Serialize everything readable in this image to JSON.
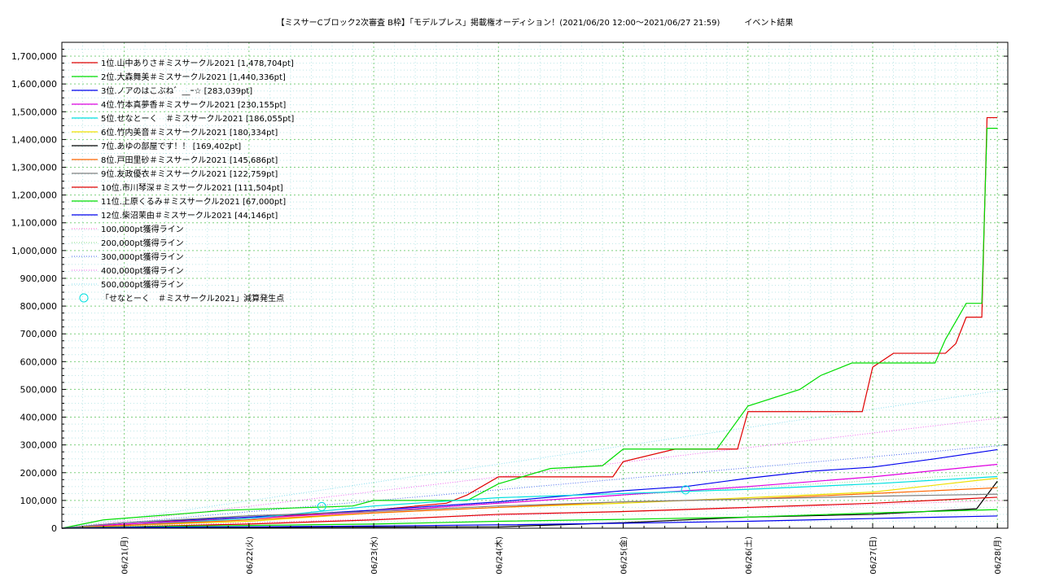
{
  "chart_data": {
    "type": "line",
    "title": "【ミスサーCブロック2次審査 B枠】「モデルプレス」掲載権オーディション！(2021/06/20 12:00〜2021/06/27 21:59)　　　イベント結果",
    "xlabel": "",
    "ylabel": "",
    "xlim": [
      "2021-06-20 12:00",
      "2021-06-28 02:00"
    ],
    "ylim": [
      0,
      1750000
    ],
    "y_ticks": [
      "0",
      "100,000",
      "200,000",
      "300,000",
      "400,000",
      "500,000",
      "600,000",
      "700,000",
      "800,000",
      "900,000",
      "1,000,000",
      "1,100,000",
      "1,200,000",
      "1,300,000",
      "1,400,000",
      "1,500,000",
      "1,600,000",
      "1,700,000"
    ],
    "x_ticks": [
      {
        "date": "2021-06-21 00:00",
        "label": "06/21(月)"
      },
      {
        "date": "2021-06-22 00:00",
        "label": "06/22(火)"
      },
      {
        "date": "2021-06-23 00:00",
        "label": "06/23(水)"
      },
      {
        "date": "2021-06-24 00:00",
        "label": "06/24(木)"
      },
      {
        "date": "2021-06-25 00:00",
        "label": "06/25(金)"
      },
      {
        "date": "2021-06-26 00:00",
        "label": "06/26(土)"
      },
      {
        "date": "2021-06-27 00:00",
        "label": "06/27(日)"
      },
      {
        "date": "2021-06-28 00:00",
        "label": "06/28(月)"
      }
    ],
    "grid": true,
    "legend_position": "top-left",
    "series": [
      {
        "name": "1位.山中ありさ＃ミスサークル2021 [1,478,704pt]",
        "color": "#e00000",
        "points": [
          [
            "2021-06-20 12:00",
            0
          ],
          [
            "2021-06-20 20:00",
            10000
          ],
          [
            "2021-06-21 10:00",
            25000
          ],
          [
            "2021-06-22 00:00",
            35000
          ],
          [
            "2021-06-22 12:00",
            50000
          ],
          [
            "2021-06-23 00:00",
            65000
          ],
          [
            "2021-06-23 14:00",
            90000
          ],
          [
            "2021-06-23 18:00",
            120000
          ],
          [
            "2021-06-24 00:00",
            185000
          ],
          [
            "2021-06-24 22:00",
            185000
          ],
          [
            "2021-06-25 00:00",
            240000
          ],
          [
            "2021-06-25 10:00",
            285000
          ],
          [
            "2021-06-25 22:00",
            285000
          ],
          [
            "2021-06-26 00:00",
            420000
          ],
          [
            "2021-06-26 22:00",
            420000
          ],
          [
            "2021-06-27 00:00",
            580000
          ],
          [
            "2021-06-27 04:00",
            630000
          ],
          [
            "2021-06-27 14:00",
            630000
          ],
          [
            "2021-06-27 16:00",
            665000
          ],
          [
            "2021-06-27 18:00",
            760000
          ],
          [
            "2021-06-27 21:00",
            760000
          ],
          [
            "2021-06-27 22:00",
            1478704
          ],
          [
            "2021-06-28 00:00",
            1478704
          ]
        ]
      },
      {
        "name": "2位.大森舞美＃ミスサークル2021 [1,440,336pt]",
        "color": "#00dd00",
        "points": [
          [
            "2021-06-20 12:00",
            0
          ],
          [
            "2021-06-20 20:00",
            30000
          ],
          [
            "2021-06-21 20:00",
            65000
          ],
          [
            "2021-06-22 20:00",
            80000
          ],
          [
            "2021-06-23 00:00",
            100000
          ],
          [
            "2021-06-23 18:00",
            100000
          ],
          [
            "2021-06-24 00:00",
            160000
          ],
          [
            "2021-06-24 10:00",
            215000
          ],
          [
            "2021-06-24 20:00",
            225000
          ],
          [
            "2021-06-25 00:00",
            285000
          ],
          [
            "2021-06-25 18:00",
            285000
          ],
          [
            "2021-06-26 00:00",
            440000
          ],
          [
            "2021-06-26 10:00",
            500000
          ],
          [
            "2021-06-26 14:00",
            550000
          ],
          [
            "2021-06-26 20:00",
            595000
          ],
          [
            "2021-06-27 12:00",
            595000
          ],
          [
            "2021-06-27 14:00",
            680000
          ],
          [
            "2021-06-27 18:00",
            810000
          ],
          [
            "2021-06-27 21:00",
            810000
          ],
          [
            "2021-06-27 22:00",
            1440336
          ],
          [
            "2021-06-28 00:00",
            1440336
          ]
        ]
      },
      {
        "name": "3位.ノアのはこぶね゛__ｰ☆ [283,039pt]",
        "color": "#0000ee",
        "points": [
          [
            "2021-06-20 12:00",
            0
          ],
          [
            "2021-06-21 00:00",
            20000
          ],
          [
            "2021-06-22 00:00",
            40000
          ],
          [
            "2021-06-23 00:00",
            65000
          ],
          [
            "2021-06-24 00:00",
            95000
          ],
          [
            "2021-06-24 18:00",
            125000
          ],
          [
            "2021-06-25 00:00",
            135000
          ],
          [
            "2021-06-25 12:00",
            150000
          ],
          [
            "2021-06-26 00:00",
            180000
          ],
          [
            "2021-06-26 12:00",
            205000
          ],
          [
            "2021-06-27 00:00",
            220000
          ],
          [
            "2021-06-27 12:00",
            250000
          ],
          [
            "2021-06-28 00:00",
            283039
          ]
        ]
      },
      {
        "name": "4位.竹本真夢香＃ミスサークル2021 [230,155pt]",
        "color": "#e000e0",
        "points": [
          [
            "2021-06-20 12:00",
            0
          ],
          [
            "2021-06-21 00:00",
            15000
          ],
          [
            "2021-06-22 00:00",
            35000
          ],
          [
            "2021-06-23 00:00",
            60000
          ],
          [
            "2021-06-24 00:00",
            90000
          ],
          [
            "2021-06-25 00:00",
            120000
          ],
          [
            "2021-06-26 00:00",
            150000
          ],
          [
            "2021-06-27 00:00",
            185000
          ],
          [
            "2021-06-28 00:00",
            230155
          ]
        ]
      },
      {
        "name": "5位.せなとーく　＃ミスサークル2021 [186,055pt]",
        "color": "#00e0e0",
        "points": [
          [
            "2021-06-20 12:00",
            0
          ],
          [
            "2021-06-21 00:00",
            10000
          ],
          [
            "2021-06-22 00:00",
            35000
          ],
          [
            "2021-06-23 00:00",
            80000
          ],
          [
            "2021-06-24 00:00",
            110000
          ],
          [
            "2021-06-25 00:00",
            125000
          ],
          [
            "2021-06-26 00:00",
            140000
          ],
          [
            "2021-06-27 00:00",
            160000
          ],
          [
            "2021-06-28 00:00",
            186055
          ]
        ]
      },
      {
        "name": "6位.竹内美音＃ミスサークル2021 [180,334pt]",
        "color": "#f0e000",
        "points": [
          [
            "2021-06-20 12:00",
            0
          ],
          [
            "2021-06-21 00:00",
            10000
          ],
          [
            "2021-06-22 00:00",
            25000
          ],
          [
            "2021-06-23 00:00",
            55000
          ],
          [
            "2021-06-24 00:00",
            75000
          ],
          [
            "2021-06-25 00:00",
            90000
          ],
          [
            "2021-06-26 00:00",
            110000
          ],
          [
            "2021-06-27 00:00",
            130000
          ],
          [
            "2021-06-28 00:00",
            180334
          ]
        ]
      },
      {
        "name": "7位.あゆの部屋です！！ [169,402pt]",
        "color": "#000000",
        "points": [
          [
            "2021-06-20 12:00",
            0
          ],
          [
            "2021-06-22 00:00",
            3000
          ],
          [
            "2021-06-24 00:00",
            5000
          ],
          [
            "2021-06-25 00:00",
            20000
          ],
          [
            "2021-06-26 00:00",
            40000
          ],
          [
            "2021-06-27 00:00",
            50000
          ],
          [
            "2021-06-27 20:00",
            70000
          ],
          [
            "2021-06-28 00:00",
            169402
          ]
        ]
      },
      {
        "name": "8位.戸田里砂＃ミスサークル2021 [145,686pt]",
        "color": "#ff6600",
        "points": [
          [
            "2021-06-20 12:00",
            0
          ],
          [
            "2021-06-21 00:00",
            10000
          ],
          [
            "2021-06-22 00:00",
            30000
          ],
          [
            "2021-06-23 00:00",
            55000
          ],
          [
            "2021-06-24 00:00",
            75000
          ],
          [
            "2021-06-25 00:00",
            95000
          ],
          [
            "2021-06-26 00:00",
            105000
          ],
          [
            "2021-06-27 00:00",
            125000
          ],
          [
            "2021-06-28 00:00",
            145686
          ]
        ]
      },
      {
        "name": "9位.友政優衣＃ミスサークル2021 [122,759pt]",
        "color": "#808080",
        "points": [
          [
            "2021-06-20 12:00",
            0
          ],
          [
            "2021-06-21 00:00",
            20000
          ],
          [
            "2021-06-22 00:00",
            45000
          ],
          [
            "2021-06-23 00:00",
            60000
          ],
          [
            "2021-06-24 00:00",
            80000
          ],
          [
            "2021-06-25 00:00",
            95000
          ],
          [
            "2021-06-26 00:00",
            105000
          ],
          [
            "2021-06-27 00:00",
            115000
          ],
          [
            "2021-06-28 00:00",
            122759
          ]
        ]
      },
      {
        "name": "10位.市川琴深＃ミスサークル2021 [111,504pt]",
        "color": "#e00000",
        "points": [
          [
            "2021-06-20 12:00",
            0
          ],
          [
            "2021-06-21 00:00",
            5000
          ],
          [
            "2021-06-22 00:00",
            15000
          ],
          [
            "2021-06-23 00:00",
            30000
          ],
          [
            "2021-06-24 00:00",
            50000
          ],
          [
            "2021-06-25 00:00",
            60000
          ],
          [
            "2021-06-26 00:00",
            75000
          ],
          [
            "2021-06-27 00:00",
            90000
          ],
          [
            "2021-06-28 00:00",
            111504
          ]
        ]
      },
      {
        "name": "11位.上原くるみ＃ミスサークル2021 [67,000pt]",
        "color": "#00dd00",
        "points": [
          [
            "2021-06-20 12:00",
            0
          ],
          [
            "2021-06-21 00:00",
            5000
          ],
          [
            "2021-06-22 00:00",
            10000
          ],
          [
            "2021-06-23 00:00",
            15000
          ],
          [
            "2021-06-24 00:00",
            25000
          ],
          [
            "2021-06-25 00:00",
            32000
          ],
          [
            "2021-06-26 00:00",
            40000
          ],
          [
            "2021-06-27 00:00",
            55000
          ],
          [
            "2021-06-28 00:00",
            67000
          ]
        ]
      },
      {
        "name": "12位.柴沼茉由＃ミスサークル2021 [44,146pt]",
        "color": "#0000ee",
        "points": [
          [
            "2021-06-20 12:00",
            0
          ],
          [
            "2021-06-21 00:00",
            3000
          ],
          [
            "2021-06-22 00:00",
            5000
          ],
          [
            "2021-06-23 00:00",
            8000
          ],
          [
            "2021-06-24 00:00",
            12000
          ],
          [
            "2021-06-25 00:00",
            18000
          ],
          [
            "2021-06-26 00:00",
            25000
          ],
          [
            "2021-06-27 00:00",
            35000
          ],
          [
            "2021-06-28 00:00",
            44146
          ]
        ]
      }
    ],
    "reference_lines": [
      {
        "name": "100,000pt獲得ライン",
        "color": "#ff66cc",
        "end_value": 100000
      },
      {
        "name": "200,000pt獲得ライン",
        "color": "#88dd88",
        "end_value": 200000
      },
      {
        "name": "300,000pt獲得ライン",
        "color": "#4466ee",
        "end_value": 300000
      },
      {
        "name": "400,000pt獲得ライン",
        "color": "#ee66ee",
        "end_value": 400000
      },
      {
        "name": "500,000pt獲得ライン",
        "color": "#88e0f0",
        "end_value": 500000
      }
    ],
    "markers": {
      "name": "「せなとーく　＃ミスサークル2021」減算発生点",
      "color": "#00e0e0",
      "points": [
        [
          "2021-06-22 14:00",
          78000
        ],
        [
          "2021-06-25 12:00",
          138000
        ]
      ]
    }
  }
}
